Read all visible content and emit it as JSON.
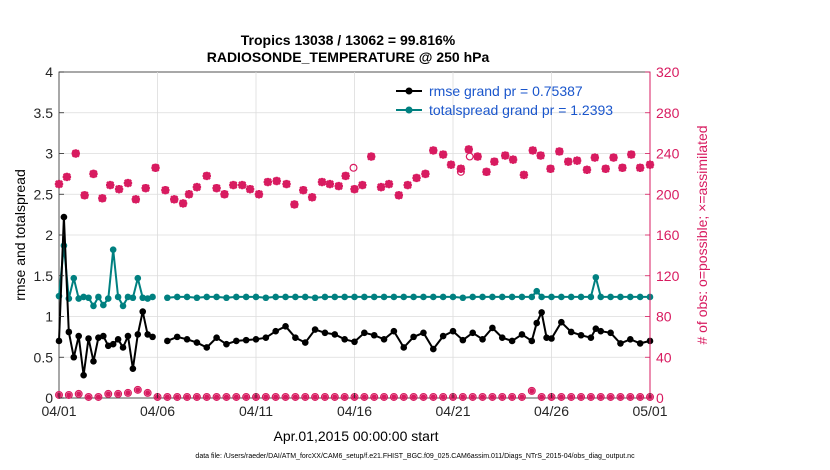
{
  "chart_data": {
    "type": "line",
    "title": "Tropics 13038 / 13062 = 99.816%",
    "subtitle": "RADIOSONDE_TEMPERATURE @ 250 hPa",
    "xlabel": "Apr.01,2015 00:00:00 start",
    "ylabel": "rmse and totalspread",
    "y2label": "# of obs: o=possible; ×=assimilated",
    "footer": "data file: /Users/raeder/DAI/ATM_forcXX/CAM6_setup/f.e21.FHIST_BGC.f09_025.CAM6assim.011/Diags_NTrS_2015-04/obs_diag_output.nc",
    "xlim": [
      0,
      30
    ],
    "ylim": [
      0,
      4
    ],
    "y2lim": [
      0,
      320
    ],
    "xticks": [
      {
        "v": 0,
        "label": "04/01"
      },
      {
        "v": 5,
        "label": "04/06"
      },
      {
        "v": 10,
        "label": "04/11"
      },
      {
        "v": 15,
        "label": "04/16"
      },
      {
        "v": 20,
        "label": "04/21"
      },
      {
        "v": 25,
        "label": "04/26"
      },
      {
        "v": 30,
        "label": "05/01"
      }
    ],
    "yticks": [
      {
        "v": 0,
        "label": "0"
      },
      {
        "v": 0.5,
        "label": "0.5"
      },
      {
        "v": 1,
        "label": "1"
      },
      {
        "v": 1.5,
        "label": "1.5"
      },
      {
        "v": 2,
        "label": "2"
      },
      {
        "v": 2.5,
        "label": "2.5"
      },
      {
        "v": 3,
        "label": "3"
      },
      {
        "v": 3.5,
        "label": "3.5"
      },
      {
        "v": 4,
        "label": "4"
      }
    ],
    "y2ticks": [
      {
        "v": 0,
        "label": "0"
      },
      {
        "v": 40,
        "label": "40"
      },
      {
        "v": 80,
        "label": "80"
      },
      {
        "v": 120,
        "label": "120"
      },
      {
        "v": 160,
        "label": "160"
      },
      {
        "v": 200,
        "label": "200"
      },
      {
        "v": 240,
        "label": "240"
      },
      {
        "v": 280,
        "label": "280"
      },
      {
        "v": 320,
        "label": "320"
      }
    ],
    "legend_position": "top-right",
    "colors": {
      "rmse": "#000000",
      "spread": "#008080",
      "obs": "#d81b60"
    },
    "series": [
      {
        "name": "rmse grand pr = 0.75387",
        "key": "rmse",
        "x": [
          0,
          0.25,
          0.5,
          0.75,
          1,
          1.25,
          1.5,
          1.75,
          2,
          2.25,
          2.5,
          2.75,
          3,
          3.25,
          3.5,
          3.75,
          4,
          4.25,
          4.5,
          4.75,
          5.5,
          6,
          6.5,
          7,
          7.5,
          8,
          8.5,
          9,
          9.5,
          10,
          10.5,
          11,
          11.5,
          12,
          12.5,
          13,
          13.5,
          14,
          14.5,
          15,
          15.5,
          16,
          16.5,
          17,
          17.5,
          18,
          18.5,
          19,
          19.5,
          20,
          20.5,
          21,
          21.5,
          22,
          22.5,
          23,
          23.5,
          24,
          24.25,
          24.5,
          24.75,
          25,
          25.5,
          26,
          26.5,
          27,
          27.25,
          27.5,
          28,
          28.5,
          29,
          29.5,
          30
        ],
        "y": [
          0.7,
          2.22,
          0.81,
          0.5,
          0.76,
          0.28,
          0.73,
          0.45,
          0.74,
          0.76,
          0.64,
          0.66,
          0.72,
          0.62,
          0.76,
          0.36,
          0.78,
          1.06,
          0.78,
          0.75,
          0.7,
          0.75,
          0.72,
          0.68,
          0.62,
          0.74,
          0.66,
          0.7,
          0.71,
          0.72,
          0.74,
          0.82,
          0.88,
          0.74,
          0.68,
          0.84,
          0.8,
          0.78,
          0.72,
          0.69,
          0.8,
          0.77,
          0.72,
          0.82,
          0.62,
          0.75,
          0.8,
          0.6,
          0.76,
          0.82,
          0.71,
          0.8,
          0.72,
          0.86,
          0.74,
          0.7,
          0.78,
          0.7,
          0.92,
          1.05,
          0.74,
          0.73,
          0.93,
          0.81,
          0.77,
          0.74,
          0.85,
          0.82,
          0.8,
          0.67,
          0.72,
          0.67,
          0.7
        ],
        "breaks_before": [
          20
        ]
      },
      {
        "name": "totalspread grand pr = 1.2393",
        "key": "spread",
        "x": [
          0,
          0.25,
          0.5,
          0.75,
          1,
          1.25,
          1.5,
          1.75,
          2,
          2.25,
          2.5,
          2.75,
          3,
          3.25,
          3.5,
          3.75,
          4,
          4.25,
          4.5,
          4.75,
          5.5,
          6,
          6.5,
          7,
          7.5,
          8,
          8.5,
          9,
          9.5,
          10,
          10.5,
          11,
          11.5,
          12,
          12.5,
          13,
          13.5,
          14,
          14.5,
          15,
          15.5,
          16,
          16.5,
          17,
          17.5,
          18,
          18.5,
          19,
          19.5,
          20,
          20.5,
          21,
          21.5,
          22,
          22.5,
          23,
          23.5,
          24,
          24.25,
          24.5,
          25,
          25.5,
          26,
          26.5,
          27,
          27.5,
          28,
          28.5,
          29,
          29.5,
          30
        ],
        "y": [
          1.25,
          1.87,
          1.22,
          1.47,
          1.22,
          1.24,
          1.23,
          1.13,
          1.24,
          1.14,
          1.22,
          1.82,
          1.24,
          1.13,
          1.24,
          1.23,
          1.47,
          1.23,
          1.22,
          1.24,
          1.23,
          1.24,
          1.24,
          1.23,
          1.24,
          1.24,
          1.23,
          1.24,
          1.24,
          1.24,
          1.23,
          1.24,
          1.24,
          1.24,
          1.24,
          1.23,
          1.24,
          1.24,
          1.24,
          1.24,
          1.24,
          1.24,
          1.24,
          1.24,
          1.24,
          1.24,
          1.24,
          1.24,
          1.24,
          1.24,
          1.23,
          1.24,
          1.24,
          1.24,
          1.24,
          1.24,
          1.24,
          1.24,
          1.31,
          1.24,
          1.24,
          1.24,
          1.24,
          1.24,
          1.24,
          1.24,
          1.24,
          1.24,
          1.24,
          1.24,
          1.24
        ],
        "x_override": [
          0,
          0.25,
          0.5,
          0.75,
          1,
          1.25,
          1.5,
          1.75,
          2,
          2.25,
          2.5,
          2.75,
          3,
          3.25,
          3.5,
          3.75,
          4,
          4.25,
          4.5,
          4.75,
          5.5,
          6,
          6.5,
          7,
          7.5,
          8,
          8.5,
          9,
          9.5,
          10,
          10.5,
          11,
          11.5,
          12,
          12.5,
          13,
          13.5,
          14,
          14.5,
          15,
          15.5,
          16,
          16.5,
          17,
          17.5,
          18,
          18.5,
          19,
          19.5,
          20,
          20.5,
          21,
          21.5,
          22,
          22.5,
          23,
          23.5,
          24,
          24.25,
          24.5,
          25,
          25.5,
          26,
          26.5,
          27,
          27.25,
          27.5,
          28,
          28.5,
          29,
          29.5,
          30
        ],
        "y_override": [
          1.25,
          1.87,
          1.22,
          1.47,
          1.22,
          1.24,
          1.23,
          1.13,
          1.24,
          1.14,
          1.22,
          1.82,
          1.24,
          1.13,
          1.24,
          1.23,
          1.47,
          1.23,
          1.22,
          1.24,
          1.23,
          1.24,
          1.24,
          1.23,
          1.24,
          1.24,
          1.23,
          1.24,
          1.24,
          1.24,
          1.23,
          1.24,
          1.24,
          1.24,
          1.24,
          1.23,
          1.24,
          1.24,
          1.24,
          1.24,
          1.24,
          1.24,
          1.24,
          1.24,
          1.24,
          1.24,
          1.24,
          1.24,
          1.24,
          1.24,
          1.23,
          1.24,
          1.24,
          1.24,
          1.24,
          1.24,
          1.24,
          1.24,
          1.31,
          1.24,
          1.24,
          1.24,
          1.24,
          1.24,
          1.24,
          1.48,
          1.24,
          1.24,
          1.24,
          1.24,
          1.24,
          1.24
        ],
        "breaks_before": [
          20
        ]
      }
    ],
    "obs_possible": {
      "x": [
        0,
        0.25,
        0.5,
        0.75,
        1,
        1.25,
        1.5,
        1.75,
        2,
        2.25,
        2.5,
        2.75,
        3,
        3.25,
        3.5,
        3.75,
        4,
        4.25,
        4.5,
        4.75,
        5,
        5.5,
        6,
        6.5,
        7,
        7.5,
        8,
        8.5,
        9,
        9.5,
        10,
        10.5,
        11,
        11.5,
        12,
        12.5,
        13,
        13.5,
        14,
        14.5,
        15,
        15.5,
        16,
        16.5,
        17,
        17.5,
        18,
        18.5,
        19,
        19.5,
        20,
        20.5,
        21,
        21.5,
        22,
        22.5,
        23,
        23.5,
        24,
        24.25,
        24.5,
        25,
        25.5,
        26,
        26.5,
        27,
        27.5,
        28,
        28.5,
        29,
        29.5,
        30
      ],
      "y": [
        210,
        216,
        242,
        199,
        220,
        196,
        208,
        205,
        210,
        195,
        205,
        227,
        205,
        195,
        192,
        200,
        205,
        218,
        205,
        200,
        202,
        212,
        204,
        198,
        213,
        212,
        209,
        203,
        208,
        207,
        189,
        200,
        192,
        212,
        210,
        214,
        217,
        206,
        210,
        208,
        218,
        206,
        205,
        212,
        198,
        210,
        206,
        222,
        217,
        225,
        213,
        223,
        223,
        210,
        238,
        246,
        240,
        227,
        225,
        243,
        238,
        218,
        224,
        237,
        218,
        235,
        216,
        219,
        234,
        226,
        237,
        228
      ],
      "note": "value grid used to place obs markers"
    },
    "obs_possible_x": [
      0,
      0.4,
      0.85,
      1.3,
      1.75,
      2.2,
      2.6,
      3.05,
      3.5,
      3.9,
      4.4,
      4.9,
      5.4,
      5.85,
      6.3,
      6.6,
      7,
      7.5,
      8,
      8.4,
      8.85,
      9.3,
      9.7,
      10.15,
      10.6,
      11.05,
      11.55,
      11.95,
      12.4,
      12.85,
      13.35,
      13.75,
      14.2,
      14.55,
      15,
      15.4,
      15.85,
      16.35,
      16.75,
      17.25,
      17.7,
      18.15,
      18.6,
      19,
      19.5,
      19.9,
      20.4,
      20.8,
      21.25,
      21.7,
      22.1,
      22.65,
      23.05,
      23.6,
      24.05,
      24.45,
      24.95,
      25.4,
      25.85,
      26.3,
      26.8,
      27.2,
      27.75,
      28.15,
      28.6,
      29.05,
      29.5,
      30
    ],
    "obs_possible_y": [
      210,
      217,
      240,
      199,
      220,
      196,
      209,
      205,
      211,
      195,
      206,
      226,
      204,
      195,
      191,
      200,
      207,
      218,
      206,
      200,
      209,
      209,
      205,
      200,
      212,
      213,
      210,
      190,
      204,
      197,
      212,
      210,
      208,
      218,
      205,
      209,
      237,
      207,
      210,
      199,
      209,
      216,
      220,
      243,
      239,
      229,
      225,
      244,
      237,
      222,
      232,
      238,
      234,
      219,
      243,
      238,
      225,
      242,
      232,
      233,
      224,
      236,
      225,
      236,
      226,
      239,
      226,
      229
    ],
    "obs_assimilated_x": [
      0,
      0.4,
      0.85,
      1.3,
      1.75,
      2.2,
      2.6,
      3.05,
      3.5,
      3.9,
      4.4,
      4.9,
      5.4,
      5.85,
      6.3,
      6.6,
      7,
      7.5,
      8,
      8.4,
      8.85,
      9.3,
      9.7,
      10.15,
      10.6,
      11.05,
      11.55,
      11.95,
      12.4,
      12.85,
      13.35,
      13.75,
      14.2,
      14.55,
      15,
      15.4,
      15.85,
      16.35,
      16.75,
      17.25,
      17.7,
      18.15,
      18.6,
      19,
      19.5,
      19.9,
      20.4,
      20.8,
      21.25,
      21.7,
      22.1,
      22.65,
      23.05,
      23.6,
      24.05,
      24.45,
      24.95,
      25.4,
      25.85,
      26.3,
      26.8,
      27.2,
      27.75,
      28.15,
      28.6,
      29.05,
      29.5,
      30
    ],
    "obs_assimilated_y": [
      210,
      217,
      240,
      199,
      220,
      196,
      209,
      205,
      211,
      195,
      206,
      226,
      204,
      195,
      191,
      200,
      207,
      218,
      206,
      200,
      209,
      209,
      205,
      200,
      212,
      213,
      210,
      190,
      204,
      197,
      212,
      210,
      208,
      218,
      205,
      209,
      237,
      207,
      210,
      199,
      209,
      216,
      220,
      243,
      239,
      229,
      225,
      244,
      237,
      222,
      232,
      238,
      234,
      219,
      243,
      238,
      225,
      242,
      232,
      233,
      224,
      236,
      225,
      236,
      226,
      239,
      226,
      229
    ],
    "obs_possible_extra_x": [
      14.95,
      20.4,
      20.85
    ],
    "obs_possible_extra_y": [
      226,
      222,
      237
    ],
    "obs_zero_x": [
      0,
      0.5,
      1,
      1.5,
      2,
      2.5,
      3,
      3.5,
      4,
      4.5,
      5,
      5.5,
      6,
      6.5,
      7,
      7.5,
      8,
      8.5,
      9,
      9.5,
      10,
      10.5,
      11,
      11.5,
      12,
      12.5,
      13,
      13.5,
      14,
      14.5,
      15,
      15.5,
      16,
      16.5,
      17,
      17.5,
      18,
      18.5,
      19,
      19.5,
      20,
      20.5,
      21,
      21.5,
      22,
      22.5,
      23,
      23.5,
      24,
      24.5,
      25,
      25.5,
      26,
      26.5,
      27,
      27.5,
      28,
      28.5,
      29,
      29.5,
      30
    ],
    "obs_zero_y": [
      3,
      3,
      4,
      1,
      1,
      4,
      4,
      5,
      8,
      5,
      1,
      1,
      1,
      1,
      1,
      1,
      1,
      1,
      1,
      1,
      1,
      1,
      1,
      1,
      1,
      1,
      1,
      1,
      1,
      1,
      1,
      1,
      1,
      1,
      1,
      1,
      1,
      1,
      1,
      1,
      1,
      1,
      1,
      1,
      1,
      1,
      1,
      1,
      7,
      1,
      1,
      1,
      1,
      1,
      1,
      1,
      1,
      1,
      1,
      1,
      1
    ]
  }
}
